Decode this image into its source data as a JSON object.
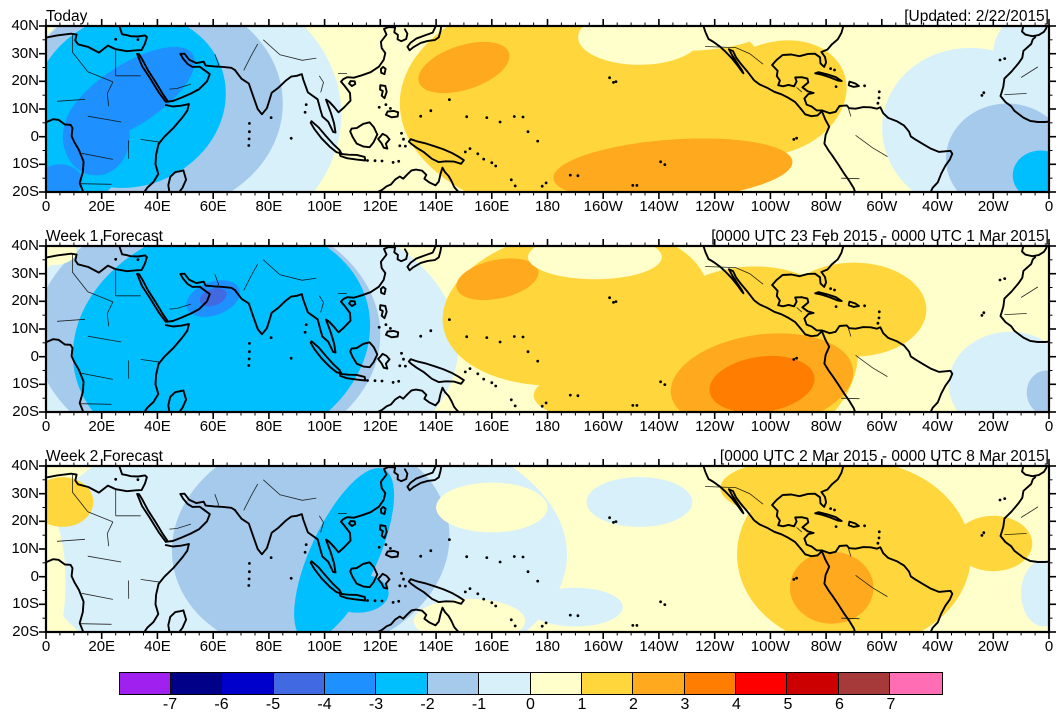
{
  "axes": {
    "lat": {
      "labels": [
        "40N",
        "30N",
        "20N",
        "10N",
        "0",
        "10S",
        "20S"
      ],
      "values": [
        40,
        30,
        20,
        10,
        0,
        -10,
        -20
      ]
    },
    "lon": {
      "labels": [
        "0",
        "20E",
        "40E",
        "60E",
        "80E",
        "100E",
        "120E",
        "140E",
        "160E",
        "180",
        "160W",
        "140W",
        "120W",
        "100W",
        "80W",
        "60W",
        "40W",
        "20W",
        "0"
      ],
      "values": [
        0,
        20,
        40,
        60,
        80,
        100,
        120,
        140,
        160,
        180,
        200,
        220,
        240,
        260,
        280,
        300,
        320,
        340,
        360
      ]
    }
  },
  "chart_data": {
    "type": "heatmap",
    "projection": "equirectangular",
    "lon_range": [
      0,
      360
    ],
    "lat_range": [
      -20,
      40
    ],
    "scale": {
      "tick_labels": [
        "-7",
        "-6",
        "-5",
        "-4",
        "-3",
        "-2",
        "-1",
        "0",
        "1",
        "2",
        "3",
        "4",
        "5",
        "6",
        "7"
      ],
      "colors": [
        "#A020F0",
        "#000089",
        "#0000CD",
        "#4169E1",
        "#1E90FF",
        "#00BFFF",
        "#A6CAEC",
        "#D8F0FA",
        "#FFFFCC",
        "#FFD73C",
        "#FFA91E",
        "#FF7D00",
        "#FF0000",
        "#CC0000",
        "#A63A3A",
        "#FF6EB4"
      ]
    },
    "regions_format": "[lon_east_deg, lat_deg, rx_deg, ry_deg, rotation_deg, band_level] where band_level b shades the interval b..b+1 of the colorbar",
    "panels": [
      {
        "title": "Today",
        "subtitle": "[Updated: 2/22/2015]",
        "regions": [
          [
            48,
            8,
            58,
            50,
            0,
            -1
          ],
          [
            38,
            12,
            47,
            40,
            0,
            -2
          ],
          [
            30,
            13,
            35,
            31,
            -20,
            -3
          ],
          [
            12,
            -12,
            14,
            11,
            0,
            -3
          ],
          [
            30,
            15,
            27,
            11,
            -33,
            -4
          ],
          [
            18,
            0,
            12,
            14,
            0,
            -4
          ],
          [
            5,
            -16,
            8,
            6,
            0,
            -4
          ],
          [
            195,
            12,
            68,
            42,
            0,
            1
          ],
          [
            262,
            14,
            26,
            20,
            -20,
            1
          ],
          [
            150,
            25,
            17,
            8,
            -18,
            2
          ],
          [
            225,
            -12,
            43,
            11,
            -4,
            2
          ],
          [
            213,
            36,
            22,
            10,
            0,
            0
          ],
          [
            228,
            39,
            30,
            8,
            0,
            0
          ],
          [
            333,
            2,
            33,
            30,
            10,
            -1
          ],
          [
            352,
            30,
            12,
            14,
            0,
            -1
          ],
          [
            345,
            -8,
            22,
            20,
            0,
            -2
          ],
          [
            357,
            -14,
            10,
            9,
            0,
            -3
          ]
        ]
      },
      {
        "title": "Week 1 Forecast",
        "subtitle": "[0000 UTC 23 Feb 2015 - 0000 UTC 1 Mar 2015]",
        "regions": [
          [
            68,
            4,
            80,
            52,
            0,
            -1
          ],
          [
            58,
            8,
            62,
            46,
            0,
            -2
          ],
          [
            63,
            6,
            54,
            42,
            -14,
            -3
          ],
          [
            60,
            21,
            10,
            6,
            -20,
            -4
          ],
          [
            60,
            21.5,
            5,
            3,
            -20,
            -5
          ],
          [
            190,
            18,
            48,
            28,
            -8,
            1
          ],
          [
            250,
            -2,
            42,
            34,
            -15,
            1
          ],
          [
            290,
            17,
            26,
            17,
            0,
            1
          ],
          [
            205,
            -14,
            30,
            10,
            0,
            1
          ],
          [
            162,
            28,
            15,
            7,
            -12,
            2
          ],
          [
            257,
            -9,
            33,
            17,
            -8,
            2
          ],
          [
            257,
            -10,
            19,
            10,
            -8,
            3
          ],
          [
            197,
            36,
            24,
            8,
            0,
            0
          ],
          [
            2,
            38,
            9,
            5,
            0,
            0
          ],
          [
            346,
            -10,
            22,
            19,
            0,
            -1
          ],
          [
            359,
            -13,
            7,
            8,
            0,
            -2
          ]
        ]
      },
      {
        "title": "Week 2 Forecast",
        "subtitle": "[0000 UTC 2 Mar 2015 - 0000 UTC 8 Mar 2015]",
        "regions": [
          [
            92,
            8,
            95,
            52,
            0,
            -1
          ],
          [
            95,
            12,
            50,
            40,
            -8,
            -2
          ],
          [
            107,
            8,
            12,
            34,
            25,
            -3
          ],
          [
            112,
            -6,
            11,
            7,
            0,
            -3
          ],
          [
            1,
            -2,
            6,
            24,
            0,
            0
          ],
          [
            6,
            27,
            11,
            9,
            0,
            1
          ],
          [
            160,
            25,
            20,
            9,
            0,
            0
          ],
          [
            152,
            -16,
            20,
            8,
            0,
            0
          ],
          [
            213,
            27,
            19,
            9,
            0,
            -1
          ],
          [
            190,
            -11,
            17,
            7,
            0,
            -1
          ],
          [
            290,
            8,
            42,
            34,
            0,
            1
          ],
          [
            268,
            32,
            26,
            10,
            0,
            1
          ],
          [
            340,
            12,
            14,
            10,
            0,
            1
          ],
          [
            282,
            -4,
            15,
            13,
            0,
            2
          ],
          [
            358,
            -6,
            8,
            12,
            0,
            -1
          ]
        ]
      }
    ]
  }
}
